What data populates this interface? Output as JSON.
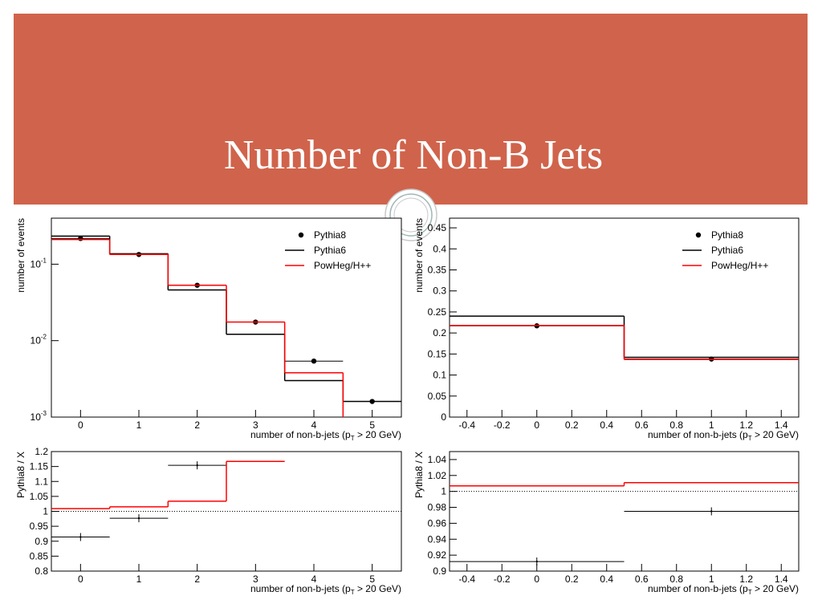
{
  "title": "Number of Non-B Jets",
  "chart_data": [
    {
      "type": "histogram",
      "log_y": true,
      "bins": [
        -0.5,
        0.5,
        1.5,
        2.5,
        3.5,
        4.5,
        5.5
      ],
      "xlim": [
        -0.5,
        5.5
      ],
      "xticks": [
        0,
        1,
        2,
        3,
        4,
        5
      ],
      "ylim": [
        0.001,
        0.4
      ],
      "yticks": [
        {
          "value": 0.001,
          "label": "10",
          "exponent": "-3"
        },
        {
          "value": 0.01,
          "label": "10",
          "exponent": "-2"
        },
        {
          "value": 0.1,
          "label": "10",
          "exponent": "-1"
        }
      ],
      "x_label": [
        "number of non-b-jets (p",
        "T",
        " > 20 GeV)"
      ],
      "y_label": "number of events",
      "legend": "upper right",
      "series": [
        {
          "name": "Pythia8",
          "color": "#000000",
          "style": "points",
          "marker": "circle",
          "values": [
            0.217,
            0.134,
            0.053,
            0.0175,
            0.0054,
            0.0016
          ]
        },
        {
          "name": "Pythia6",
          "color": "#000000",
          "style": "step",
          "values": [
            0.233,
            0.137,
            0.046,
            0.0121,
            0.003,
            0.0016
          ]
        },
        {
          "name": "PowHeg/H++",
          "color": "#ff0000",
          "style": "step",
          "values": [
            0.21,
            0.134,
            0.053,
            0.0175,
            0.0038,
            0.0009
          ]
        }
      ]
    },
    {
      "type": "histogram",
      "log_y": false,
      "bins": [
        -0.5,
        0.5,
        1.5
      ],
      "xlim": [
        -0.5,
        1.5
      ],
      "xticks": [
        -0.4,
        -0.2,
        0,
        0.2,
        0.4,
        0.6,
        0.8,
        1,
        1.2,
        1.4
      ],
      "ylim": [
        0,
        0.473
      ],
      "yticks": [
        0,
        0.05,
        0.1,
        0.15,
        0.2,
        0.25,
        0.3,
        0.35,
        0.4,
        0.45
      ],
      "x_label": [
        "number of non-b-jets (p",
        "T",
        " > 20 GeV)"
      ],
      "y_label": "number of events",
      "legend": "upper right",
      "series": [
        {
          "name": "Pythia8",
          "color": "#000000",
          "style": "points",
          "marker": "circle",
          "values": [
            0.217,
            0.138
          ]
        },
        {
          "name": "Pythia6",
          "color": "#000000",
          "style": "step",
          "values": [
            0.24,
            0.142
          ]
        },
        {
          "name": "PowHeg/H++",
          "color": "#ff0000",
          "style": "step",
          "values": [
            0.218,
            0.137
          ]
        }
      ]
    },
    {
      "type": "histogram",
      "log_y": false,
      "bins": [
        -0.5,
        0.5,
        1.5,
        2.5,
        3.5,
        4.5,
        5.5
      ],
      "xlim": [
        -0.5,
        5.5
      ],
      "xticks": [
        0,
        1,
        2,
        3,
        4,
        5
      ],
      "ylim": [
        0.8,
        1.2
      ],
      "yticks": [
        0.8,
        0.85,
        0.9,
        0.95,
        1,
        1.05,
        1.1,
        1.15,
        1.2
      ],
      "reference_line": 1,
      "x_label": [
        "number of non-b-jets (p",
        "T",
        " > 20 GeV)"
      ],
      "y_label": "Pythia8 / X",
      "series": [
        {
          "color": "#000000",
          "style": "points",
          "marker": "cross",
          "values": [
            0.914,
            0.977,
            1.154,
            null,
            null,
            null
          ]
        },
        {
          "color": "#ff0000",
          "style": "step",
          "values": [
            1.009,
            1.015,
            1.034,
            1.167,
            null,
            null
          ]
        }
      ]
    },
    {
      "type": "histogram",
      "log_y": false,
      "bins": [
        -0.5,
        0.5,
        1.5
      ],
      "xlim": [
        -0.5,
        1.5
      ],
      "xticks": [
        -0.4,
        -0.2,
        0,
        0.2,
        0.4,
        0.6,
        0.8,
        1,
        1.2,
        1.4
      ],
      "ylim": [
        0.9,
        1.05
      ],
      "yticks": [
        0.9,
        0.92,
        0.94,
        0.96,
        0.98,
        1,
        1.02,
        1.04
      ],
      "reference_line": 1,
      "x_label": [
        "number of non-b-jets (p",
        "T",
        " > 20 GeV)"
      ],
      "y_label": "Pythia8 / X",
      "series": [
        {
          "color": "#000000",
          "style": "points",
          "marker": "cross",
          "values": [
            0.912,
            0.975
          ]
        },
        {
          "color": "#ff0000",
          "style": "step",
          "values": [
            1.007,
            1.011
          ]
        }
      ]
    }
  ]
}
